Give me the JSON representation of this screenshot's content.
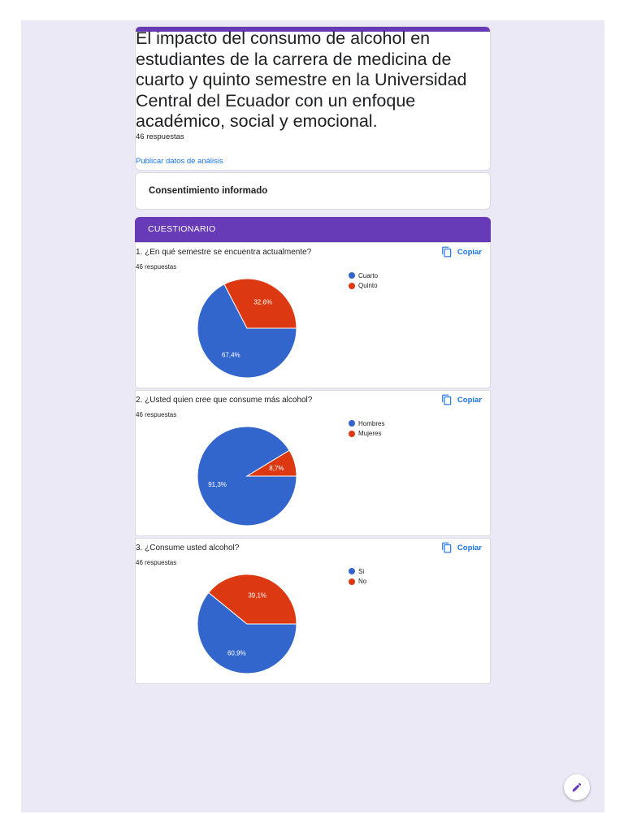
{
  "header": {
    "title": "El impacto del consumo de alcohol en estudiantes de la carrera de medicina de cuarto y quinto semestre en la Universidad Central del Ecuador con un enfoque académico, social y emocional.",
    "responses": "46 respuestas",
    "publish_link": "Publicar datos de análisis"
  },
  "consent": {
    "title": "Consentimiento informado"
  },
  "section": {
    "title": "CUESTIONARIO"
  },
  "copy_label": "Copiar",
  "colors": {
    "accent": "#673ab7",
    "blue": "#3366cc",
    "red": "#dc3912",
    "link": "#1a73e8",
    "background": "#ece9f6"
  },
  "questions": [
    {
      "title": "1. ¿En qué semestre se encuentra actualmente?",
      "responses": "46 respuestas",
      "chart_data": {
        "type": "pie",
        "categories": [
          "Cuarto",
          "Quinto"
        ],
        "values": [
          67.4,
          32.6
        ],
        "labels": [
          "67,4%",
          "32,6%"
        ],
        "colors": [
          "#3366cc",
          "#dc3912"
        ],
        "legend": "right"
      }
    },
    {
      "title": "2. ¿Usted quien cree que consume más alcohol?",
      "responses": "46 respuestas",
      "chart_data": {
        "type": "pie",
        "categories": [
          "Hombres",
          "Mujeres"
        ],
        "values": [
          91.3,
          8.7
        ],
        "labels": [
          "91,3%",
          "8,7%"
        ],
        "colors": [
          "#3366cc",
          "#dc3912"
        ],
        "legend": "right"
      }
    },
    {
      "title": "3. ¿Consume usted alcohol?",
      "responses": "46 respuestas",
      "chart_data": {
        "type": "pie",
        "categories": [
          "Si",
          "No"
        ],
        "values": [
          60.9,
          39.1
        ],
        "labels": [
          "60,9%",
          "39,1%"
        ],
        "colors": [
          "#3366cc",
          "#dc3912"
        ],
        "legend": "right"
      }
    }
  ],
  "fab": {
    "icon": "pencil-icon"
  }
}
